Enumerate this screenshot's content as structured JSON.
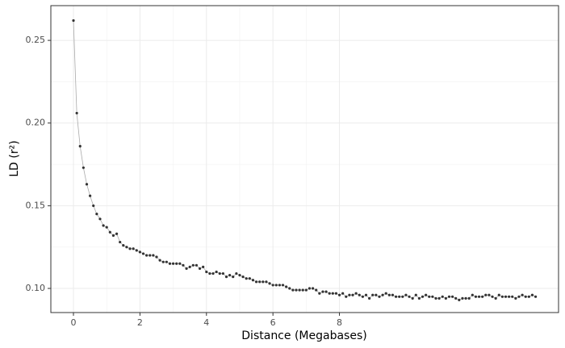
{
  "chart_data": {
    "type": "scatter",
    "xlabel": "Distance (Megabases)",
    "ylabel": "LD (r²)",
    "x": [
      0,
      0.1,
      0.2,
      0.3,
      0.4,
      0.5,
      0.6,
      0.7,
      0.8,
      0.9,
      1,
      1.1,
      1.2,
      1.3,
      1.4,
      1.5,
      1.6,
      1.7,
      1.8,
      1.9,
      2,
      2.1,
      2.2,
      2.3,
      2.4,
      2.5,
      2.6,
      2.7,
      2.8,
      2.9,
      3,
      3.1,
      3.2,
      3.3,
      3.4,
      3.5,
      3.6,
      3.7,
      3.8,
      3.9,
      4,
      4.1,
      4.2,
      4.3,
      4.4,
      4.5,
      4.6,
      4.7,
      4.8,
      4.9,
      5,
      5.1,
      5.2,
      5.3,
      5.4,
      5.5,
      5.6,
      5.7,
      5.8,
      5.9,
      6,
      6.1,
      6.2,
      6.3,
      6.4,
      6.5,
      6.6,
      6.7,
      6.8,
      6.9,
      7,
      7.1,
      7.2,
      7.3,
      7.4,
      7.5,
      7.6,
      7.7,
      7.8,
      7.9,
      8,
      8.1,
      8.2,
      8.3,
      8.4,
      8.5,
      8.6,
      8.7,
      8.8,
      8.9,
      9,
      9.1,
      9.2,
      9.3,
      9.4,
      9.5,
      9.6,
      9.7,
      9.8,
      9.9,
      10,
      10.1,
      10.2,
      10.3,
      10.4,
      10.5,
      10.6,
      10.7,
      10.8,
      10.9,
      11,
      11.1,
      11.2,
      11.3,
      11.4,
      11.5,
      11.6,
      11.7,
      11.8,
      11.9,
      12,
      12.1,
      12.2,
      12.3,
      12.4,
      12.5,
      12.6,
      12.7,
      12.8,
      12.9,
      13,
      13.1,
      13.2,
      13.3,
      13.4,
      13.5,
      13.6,
      13.7,
      13.8,
      13.9
    ],
    "values": [
      0.262,
      0.206,
      0.186,
      0.173,
      0.163,
      0.156,
      0.15,
      0.145,
      0.142,
      0.138,
      0.137,
      0.134,
      0.132,
      0.133,
      0.128,
      0.126,
      0.125,
      0.124,
      0.124,
      0.123,
      0.122,
      0.121,
      0.12,
      0.12,
      0.12,
      0.119,
      0.117,
      0.116,
      0.116,
      0.115,
      0.115,
      0.115,
      0.115,
      0.114,
      0.112,
      0.113,
      0.114,
      0.114,
      0.112,
      0.113,
      0.11,
      0.109,
      0.109,
      0.11,
      0.109,
      0.109,
      0.107,
      0.108,
      0.107,
      0.109,
      0.108,
      0.107,
      0.106,
      0.106,
      0.105,
      0.104,
      0.104,
      0.104,
      0.104,
      0.103,
      0.102,
      0.102,
      0.102,
      0.102,
      0.101,
      0.1,
      0.099,
      0.099,
      0.099,
      0.099,
      0.099,
      0.1,
      0.1,
      0.099,
      0.097,
      0.098,
      0.098,
      0.097,
      0.097,
      0.097,
      0.096,
      0.097,
      0.095,
      0.096,
      0.096,
      0.097,
      0.096,
      0.095,
      0.096,
      0.094,
      0.096,
      0.096,
      0.095,
      0.096,
      0.097,
      0.096,
      0.096,
      0.095,
      0.095,
      0.095,
      0.096,
      0.095,
      0.094,
      0.096,
      0.094,
      0.095,
      0.096,
      0.095,
      0.095,
      0.094,
      0.094,
      0.095,
      0.094,
      0.095,
      0.095,
      0.094,
      0.093,
      0.094,
      0.094,
      0.094,
      0.096,
      0.095,
      0.095,
      0.095,
      0.096,
      0.096,
      0.095,
      0.094,
      0.096,
      0.095,
      0.095,
      0.095,
      0.095,
      0.094,
      0.095,
      0.096,
      0.095,
      0.095,
      0.096,
      0.095
    ],
    "color": "#333333",
    "line_color": "#aaaaaa",
    "xlim": [
      -0.68,
      14.59
    ],
    "xticks": [
      0,
      2,
      4,
      6,
      8
    ],
    "xminor": [
      1,
      3,
      5,
      7
    ],
    "ylim": [
      0.0854,
      0.271
    ],
    "yticks": [
      {
        "value": 0.1,
        "label": "0.10"
      },
      0.15,
      {
        "value": 0.2,
        "label": "0.20"
      },
      0.25
    ],
    "yminor": [
      0.125,
      0.175,
      0.225
    ],
    "grid": true
  }
}
